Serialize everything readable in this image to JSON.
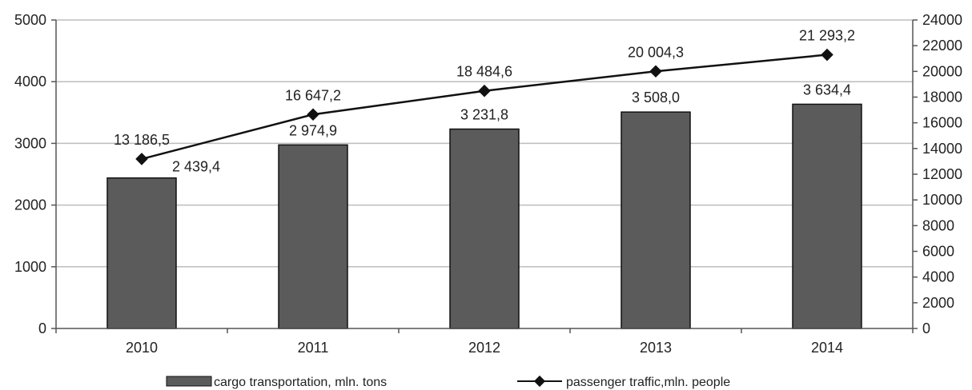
{
  "chart_data": {
    "type": "bar",
    "categories": [
      "2010",
      "2011",
      "2012",
      "2013",
      "2014"
    ],
    "series": [
      {
        "name": "cargo transportation, mln. tons",
        "type": "bar",
        "axis": "left",
        "values": [
          2439.4,
          2974.9,
          3231.8,
          3508.0,
          3634.4
        ],
        "labels": [
          "2 439,4",
          "2 974,9",
          "3 231,8",
          "3 508,0",
          "3 634,4"
        ]
      },
      {
        "name": "passenger traffic,mln. people",
        "type": "line",
        "axis": "right",
        "values": [
          13186.5,
          16647.2,
          18484.6,
          20004.3,
          21293.2
        ],
        "labels": [
          "13 186,5",
          "16 647,2",
          "18 484,6",
          "20 004,3",
          "21 293,2"
        ]
      }
    ],
    "y_left": {
      "min": 0,
      "max": 5000,
      "step": 1000,
      "ticks": [
        "0",
        "1000",
        "2000",
        "3000",
        "4000",
        "5000"
      ]
    },
    "y_right": {
      "min": 0,
      "max": 24000,
      "step": 2000,
      "ticks": [
        "0",
        "2000",
        "4000",
        "6000",
        "8000",
        "10000",
        "12000",
        "14000",
        "16000",
        "18000",
        "20000",
        "22000",
        "24000"
      ]
    },
    "grid": true,
    "legend_position": "bottom",
    "colors": {
      "bar_fill": "#5b5b5b",
      "bar_stroke": "#111111",
      "line": "#111111",
      "grid": "#bdbdbd",
      "axis": "#555555"
    }
  }
}
